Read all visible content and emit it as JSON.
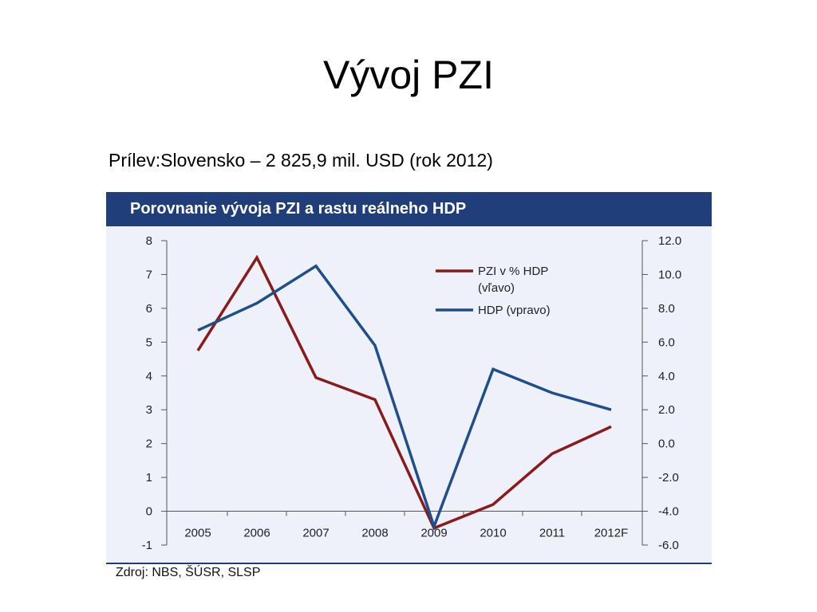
{
  "slide": {
    "title": "Vývoj PZI",
    "subtitle": "Prílev:Slovensko – 2 825,9 mil. USD (rok 2012)",
    "source": "Zdroj: NBS, ŠÚSR, SLSP"
  },
  "chart_data": {
    "type": "line",
    "title": "Porovnanie vývoja PZI a rastu reálneho HDP",
    "categories": [
      "2005",
      "2006",
      "2007",
      "2008",
      "2009",
      "2010",
      "2011",
      "2012F"
    ],
    "y_left": {
      "min": -1,
      "max": 8,
      "ticks": [
        "8",
        "7",
        "6",
        "5",
        "4",
        "3",
        "2",
        "1",
        "0",
        "-1"
      ]
    },
    "y_right": {
      "min": -6,
      "max": 12,
      "ticks": [
        "12.0",
        "10.0",
        "8.0",
        "6.0",
        "4.0",
        "2.0",
        "0.0",
        "-2.0",
        "-4.0",
        "-6.0"
      ]
    },
    "series": [
      {
        "name": "PZI v % HDP",
        "name_line2": "(vľavo)",
        "axis": "left",
        "color": "#8b1a1a",
        "values": [
          4.75,
          7.5,
          3.95,
          3.3,
          -0.5,
          0.2,
          1.7,
          2.5
        ]
      },
      {
        "name": "HDP (vpravo)",
        "name_line2": "",
        "axis": "right",
        "color": "#1f4e8c",
        "values": [
          6.7,
          8.3,
          10.5,
          5.8,
          -4.9,
          4.4,
          3.0,
          2.0
        ]
      }
    ],
    "legend_position": "top-right",
    "grid": false
  }
}
